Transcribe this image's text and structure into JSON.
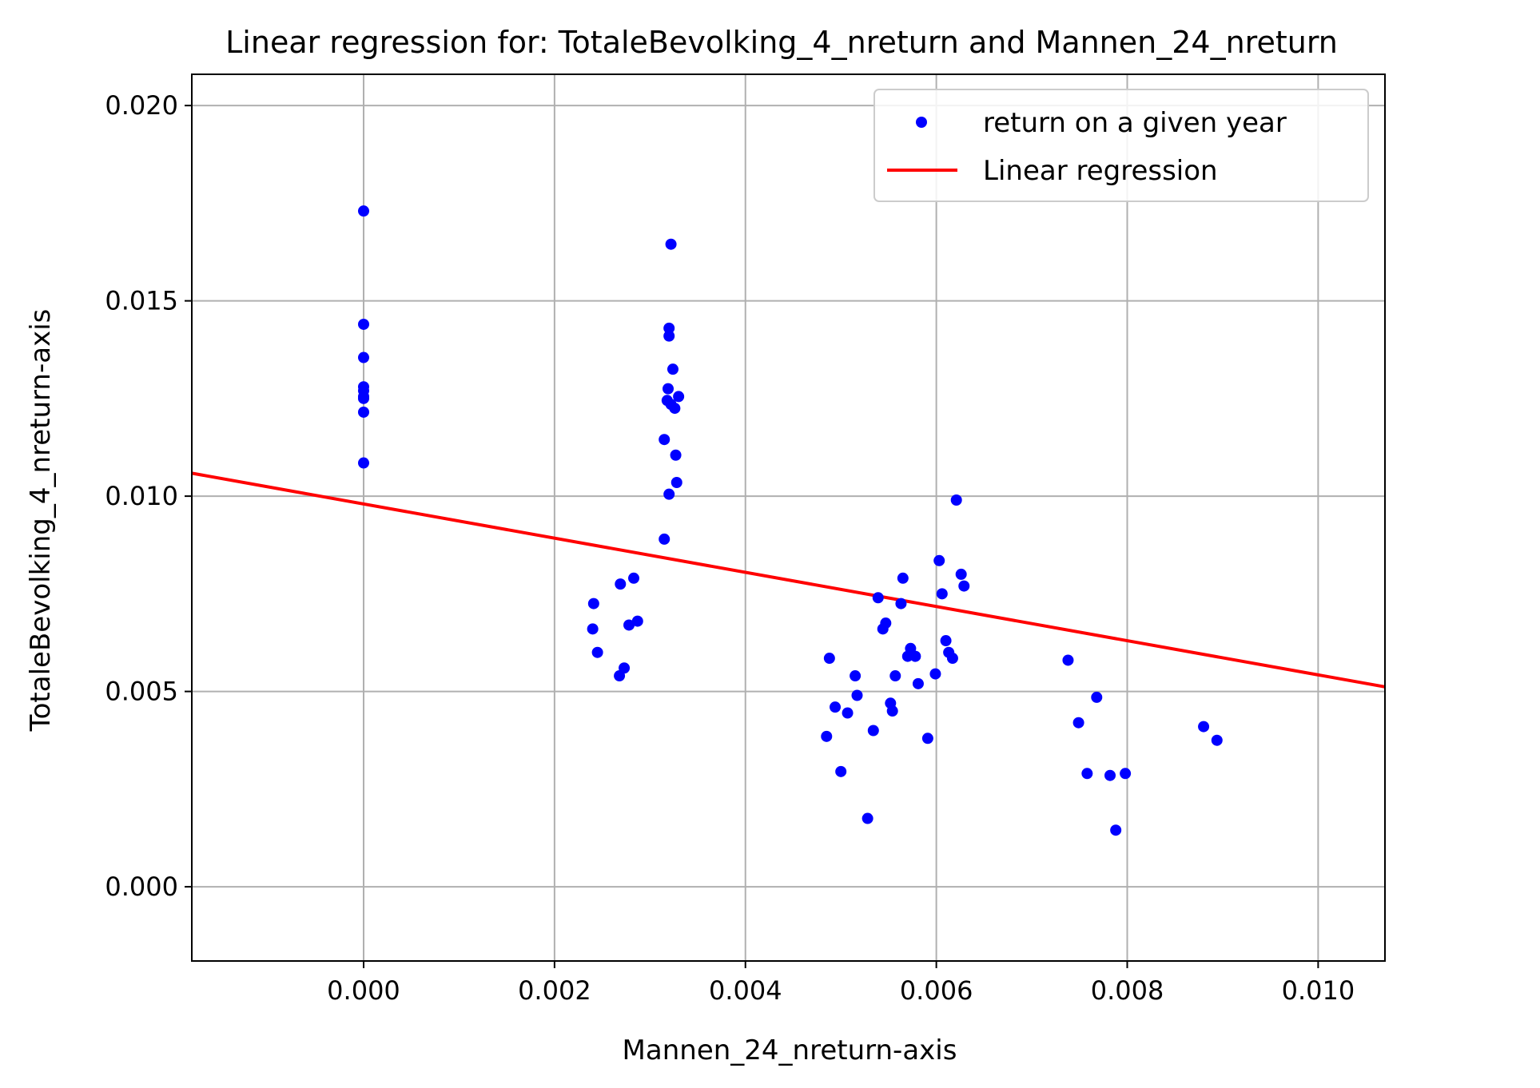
{
  "colors": {
    "points": "#0000ff",
    "regression_line": "#ff0000",
    "grid": "#b0b0b0",
    "axis": "#000000",
    "legend_border": "#cccccc"
  },
  "chart_data": {
    "type": "scatter",
    "title": "Linear regression for: TotaleBevolking_4_nreturn and Mannen_24_nreturn",
    "xlabel": "Mannen_24_nreturn-axis",
    "ylabel": "TotaleBevolking_4_nreturn-axis",
    "xlim": [
      -0.0018,
      0.0107
    ],
    "ylim": [
      -0.0019,
      0.0208
    ],
    "grid": true,
    "legend_position": "top-right",
    "x_ticks": [
      0.0,
      0.002,
      0.004,
      0.006,
      0.008,
      0.01
    ],
    "x_tick_labels": [
      "0.000",
      "0.002",
      "0.004",
      "0.006",
      "0.008",
      "0.010"
    ],
    "y_ticks": [
      0.0,
      0.005,
      0.01,
      0.015,
      0.02
    ],
    "y_tick_labels": [
      "0.000",
      "0.005",
      "0.010",
      "0.015",
      "0.020"
    ],
    "series": [
      {
        "name": "return on a given year",
        "kind": "scatter",
        "points": [
          [
            0.0,
            0.0173
          ],
          [
            0.0,
            0.0144
          ],
          [
            0.0,
            0.01355
          ],
          [
            0.0,
            0.0128
          ],
          [
            0.0,
            0.0127
          ],
          [
            0.0,
            0.01255
          ],
          [
            0.0,
            0.0125
          ],
          [
            0.0,
            0.01215
          ],
          [
            0.0,
            0.01085
          ],
          [
            0.00322,
            0.01645
          ],
          [
            0.0032,
            0.0143
          ],
          [
            0.0032,
            0.0141
          ],
          [
            0.00324,
            0.01325
          ],
          [
            0.00319,
            0.01275
          ],
          [
            0.00318,
            0.01245
          ],
          [
            0.00322,
            0.01235
          ],
          [
            0.0033,
            0.01255
          ],
          [
            0.00326,
            0.01225
          ],
          [
            0.00315,
            0.01145
          ],
          [
            0.00327,
            0.01105
          ],
          [
            0.0032,
            0.01005
          ],
          [
            0.00328,
            0.01035
          ],
          [
            0.00315,
            0.0089
          ],
          [
            0.00241,
            0.00725
          ],
          [
            0.0024,
            0.0066
          ],
          [
            0.00245,
            0.006
          ],
          [
            0.00269,
            0.00775
          ],
          [
            0.00283,
            0.0079
          ],
          [
            0.00278,
            0.0067
          ],
          [
            0.00287,
            0.0068
          ],
          [
            0.00268,
            0.0054
          ],
          [
            0.00273,
            0.0056
          ],
          [
            0.00621,
            0.0099
          ],
          [
            0.00603,
            0.00835
          ],
          [
            0.00626,
            0.008
          ],
          [
            0.00565,
            0.0079
          ],
          [
            0.00629,
            0.0077
          ],
          [
            0.00606,
            0.0075
          ],
          [
            0.00539,
            0.0074
          ],
          [
            0.00563,
            0.00725
          ],
          [
            0.00547,
            0.00675
          ],
          [
            0.00544,
            0.0066
          ],
          [
            0.0061,
            0.0063
          ],
          [
            0.00573,
            0.0061
          ],
          [
            0.00613,
            0.006
          ],
          [
            0.0057,
            0.0059
          ],
          [
            0.00578,
            0.0059
          ],
          [
            0.00617,
            0.00585
          ],
          [
            0.00488,
            0.00585
          ],
          [
            0.00599,
            0.00545
          ],
          [
            0.00515,
            0.0054
          ],
          [
            0.00557,
            0.0054
          ],
          [
            0.00581,
            0.0052
          ],
          [
            0.00517,
            0.0049
          ],
          [
            0.00552,
            0.0047
          ],
          [
            0.00494,
            0.0046
          ],
          [
            0.00554,
            0.0045
          ],
          [
            0.00507,
            0.00445
          ],
          [
            0.00534,
            0.004
          ],
          [
            0.00485,
            0.00385
          ],
          [
            0.00591,
            0.0038
          ],
          [
            0.005,
            0.00295
          ],
          [
            0.00528,
            0.00175
          ],
          [
            0.00738,
            0.0058
          ],
          [
            0.00768,
            0.00485
          ],
          [
            0.00749,
            0.0042
          ],
          [
            0.00758,
            0.0029
          ],
          [
            0.00782,
            0.00285
          ],
          [
            0.00798,
            0.0029
          ],
          [
            0.00788,
            0.00145
          ],
          [
            0.0088,
            0.0041
          ],
          [
            0.00894,
            0.00375
          ]
        ]
      },
      {
        "name": "Linear regression",
        "kind": "line",
        "intercept": 0.0098,
        "slope": -0.4375
      }
    ]
  }
}
